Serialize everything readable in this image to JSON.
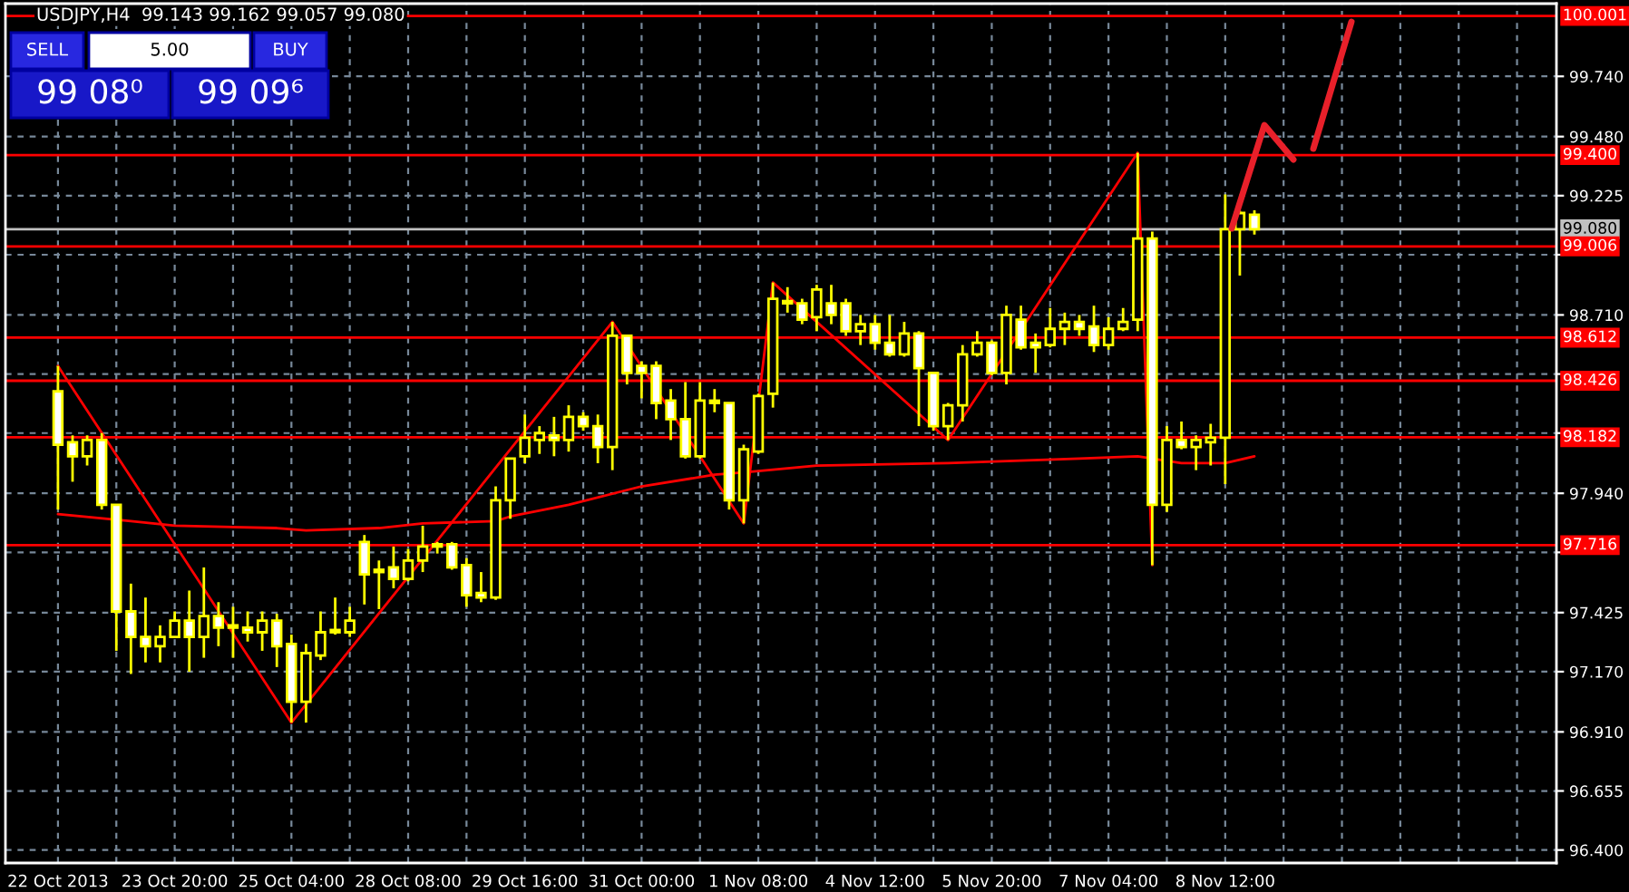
{
  "chart_data": {
    "type": "candlestick",
    "title": "USDJPY,H4  99.143 99.162 99.057 99.080",
    "annotations": [
      "SELL",
      "5.00",
      "BUY",
      "99 08⁰",
      "99 09⁶"
    ],
    "categories": [
      "22 Oct 2013",
      null,
      null,
      null,
      null,
      null,
      null,
      null,
      "23 Oct 20:00",
      null,
      null,
      null,
      null,
      null,
      null,
      null,
      "25 Oct 04:00",
      null,
      null,
      null,
      null,
      null,
      null,
      null,
      "28 Oct 08:00",
      null,
      null,
      null,
      null,
      null,
      null,
      null,
      "29 Oct 16:00",
      null,
      null,
      null,
      null,
      null,
      null,
      null,
      "31 Oct 00:00",
      null,
      null,
      null,
      null,
      null,
      null,
      null,
      "1 Nov 08:00",
      null,
      null,
      null,
      null,
      null,
      null,
      null,
      "4 Nov 12:00",
      null,
      null,
      null,
      null,
      null,
      null,
      null,
      "5 Nov 20:00",
      null,
      null,
      null,
      null,
      null,
      null,
      null,
      "7 Nov 04:00",
      null,
      null,
      null,
      null,
      null,
      null,
      null,
      "8 Nov 12:00",
      null,
      null,
      null,
      null,
      null,
      null,
      null,
      null,
      null,
      null,
      null,
      null,
      null,
      null,
      null,
      null,
      null,
      null,
      null,
      null,
      null,
      null
    ],
    "series": [
      {
        "type": "line",
        "color": "#ff0000",
        "values": [
          97.85,
          null,
          null,
          null,
          null,
          97.82,
          null,
          null,
          97.8,
          null,
          null,
          null,
          null,
          null,
          null,
          97.79,
          null,
          97.78,
          null,
          null,
          null,
          null,
          97.79,
          null,
          null,
          97.81,
          null,
          null,
          null,
          null,
          97.82,
          97.84,
          null,
          null,
          null,
          97.89,
          null,
          null,
          null,
          null,
          97.97,
          null,
          null,
          null,
          null,
          98.02,
          null,
          98.03,
          null,
          null,
          null,
          null,
          98.06,
          null,
          null,
          null,
          null,
          null,
          null,
          null,
          null,
          98.07,
          null,
          null,
          null,
          null,
          null,
          null,
          null,
          null,
          98.09,
          null,
          null,
          null,
          98.1,
          null,
          null,
          98.07,
          null,
          null,
          98.07,
          null,
          98.1,
          null,
          null,
          null,
          null,
          null,
          null,
          null,
          null,
          null,
          null,
          null,
          null,
          null,
          null,
          null,
          null,
          null,
          null,
          null,
          null
        ]
      },
      {
        "type": "line",
        "color": "#ff0000",
        "values": [
          98.49,
          null,
          null,
          null,
          null,
          null,
          null,
          null,
          null,
          null,
          null,
          null,
          null,
          null,
          null,
          null,
          96.95,
          null,
          null,
          null,
          null,
          null,
          null,
          null,
          null,
          null,
          null,
          null,
          null,
          null,
          null,
          null,
          null,
          null,
          null,
          null,
          null,
          null,
          98.68,
          null,
          null,
          null,
          null,
          null,
          null,
          null,
          null,
          97.81,
          null,
          98.85,
          null,
          null,
          null,
          null,
          null,
          null,
          null,
          null,
          null,
          null,
          null,
          98.17,
          null,
          null,
          null,
          null,
          null,
          null,
          null,
          null,
          null,
          null,
          null,
          null,
          99.41,
          97.63,
          null,
          null,
          null,
          null,
          null,
          null,
          null,
          null,
          null,
          null,
          null,
          null,
          null,
          null,
          null,
          null,
          null,
          null,
          null,
          null,
          null,
          null,
          null,
          null,
          null,
          null,
          null
        ]
      },
      {
        "type": "candlestick",
        "color": "#ffff00",
        "ohlc": [
          [
            98.38,
            98.49,
            97.87,
            98.15
          ],
          [
            98.16,
            98.19,
            97.99,
            98.1
          ],
          [
            98.1,
            98.19,
            98.06,
            98.17
          ],
          [
            98.17,
            98.2,
            97.87,
            97.89
          ],
          [
            97.89,
            97.89,
            97.26,
            97.43
          ],
          [
            97.43,
            97.55,
            97.16,
            97.32
          ],
          [
            97.32,
            97.49,
            97.21,
            97.28
          ],
          [
            97.28,
            97.37,
            97.21,
            97.32
          ],
          [
            97.32,
            97.43,
            97.32,
            97.39
          ],
          [
            97.39,
            97.52,
            97.17,
            97.32
          ],
          [
            97.32,
            97.62,
            97.23,
            97.41
          ],
          [
            97.41,
            97.47,
            97.28,
            97.36
          ],
          [
            97.37,
            97.45,
            97.23,
            97.36
          ],
          [
            97.36,
            97.43,
            97.3,
            97.34
          ],
          [
            97.34,
            97.43,
            97.26,
            97.39
          ],
          [
            97.39,
            97.42,
            97.19,
            97.28
          ],
          [
            97.29,
            97.33,
            96.95,
            97.04
          ],
          [
            97.04,
            97.29,
            96.95,
            97.25
          ],
          [
            97.24,
            97.43,
            97.22,
            97.34
          ],
          [
            97.35,
            97.49,
            97.33,
            97.34
          ],
          [
            97.34,
            97.45,
            97.32,
            97.39
          ],
          [
            97.73,
            97.76,
            97.46,
            97.59
          ],
          [
            97.61,
            97.65,
            97.44,
            97.6
          ],
          [
            97.62,
            97.71,
            97.53,
            97.57
          ],
          [
            97.57,
            97.7,
            97.56,
            97.65
          ],
          [
            97.65,
            97.8,
            97.6,
            97.71
          ],
          [
            97.71,
            97.73,
            97.68,
            97.72
          ],
          [
            97.72,
            97.73,
            97.61,
            97.62
          ],
          [
            97.63,
            97.66,
            97.45,
            97.5
          ],
          [
            97.51,
            97.6,
            97.47,
            97.49
          ],
          [
            97.49,
            97.97,
            97.48,
            97.91
          ],
          [
            97.91,
            98.09,
            97.83,
            98.09
          ],
          [
            98.1,
            98.28,
            98.07,
            98.18
          ],
          [
            98.17,
            98.23,
            98.11,
            98.2
          ],
          [
            98.19,
            98.27,
            98.1,
            98.17
          ],
          [
            98.17,
            98.32,
            98.12,
            98.27
          ],
          [
            98.27,
            98.29,
            98.21,
            98.23
          ],
          [
            98.23,
            98.28,
            98.07,
            98.14
          ],
          [
            98.14,
            98.68,
            98.04,
            98.62
          ],
          [
            98.62,
            98.62,
            98.41,
            98.46
          ],
          [
            98.49,
            98.51,
            98.35,
            98.46
          ],
          [
            98.49,
            98.51,
            98.26,
            98.33
          ],
          [
            98.34,
            98.39,
            98.17,
            98.26
          ],
          [
            98.26,
            98.42,
            98.09,
            98.1
          ],
          [
            98.1,
            98.42,
            98.09,
            98.34
          ],
          [
            98.34,
            98.39,
            98.29,
            98.33
          ],
          [
            98.33,
            98.33,
            97.87,
            97.91
          ],
          [
            97.91,
            98.15,
            97.81,
            98.13
          ],
          [
            98.12,
            98.37,
            98.11,
            98.36
          ],
          [
            98.37,
            98.85,
            98.31,
            98.78
          ],
          [
            98.77,
            98.83,
            98.72,
            98.76
          ],
          [
            98.76,
            98.78,
            98.67,
            98.69
          ],
          [
            98.7,
            98.84,
            98.64,
            98.82
          ],
          [
            98.76,
            98.84,
            98.67,
            98.71
          ],
          [
            98.76,
            98.78,
            98.62,
            98.64
          ],
          [
            98.64,
            98.71,
            98.58,
            98.67
          ],
          [
            98.67,
            98.71,
            98.56,
            98.59
          ],
          [
            98.59,
            98.71,
            98.53,
            98.54
          ],
          [
            98.54,
            98.68,
            98.53,
            98.63
          ],
          [
            98.63,
            98.64,
            98.23,
            98.48
          ],
          [
            98.46,
            98.46,
            98.21,
            98.23
          ],
          [
            98.23,
            98.33,
            98.17,
            98.32
          ],
          [
            98.32,
            98.58,
            98.25,
            98.54
          ],
          [
            98.54,
            98.64,
            98.53,
            98.59
          ],
          [
            98.59,
            98.6,
            98.45,
            98.46
          ],
          [
            98.46,
            98.75,
            98.41,
            98.71
          ],
          [
            98.69,
            98.75,
            98.56,
            98.57
          ],
          [
            98.59,
            98.63,
            98.46,
            98.57
          ],
          [
            98.58,
            98.74,
            98.57,
            98.65
          ],
          [
            98.65,
            98.72,
            98.58,
            98.68
          ],
          [
            98.68,
            98.71,
            98.62,
            98.65
          ],
          [
            98.66,
            98.75,
            98.55,
            98.58
          ],
          [
            98.58,
            98.7,
            98.56,
            98.65
          ],
          [
            98.65,
            98.74,
            98.64,
            98.68
          ],
          [
            98.69,
            99.41,
            98.64,
            99.04
          ],
          [
            99.04,
            99.07,
            97.63,
            97.89
          ],
          [
            97.89,
            98.23,
            97.86,
            98.17
          ],
          [
            98.17,
            98.25,
            98.13,
            98.14
          ],
          [
            98.14,
            98.19,
            98.04,
            98.17
          ],
          [
            98.16,
            98.24,
            98.06,
            98.18
          ],
          [
            98.18,
            99.23,
            97.98,
            99.08
          ],
          [
            99.08,
            99.16,
            98.88,
            99.15
          ],
          [
            99.143,
            99.162,
            99.057,
            99.08
          ],
          null,
          null,
          null,
          null,
          null,
          null,
          null,
          null,
          null,
          null,
          null,
          null,
          null,
          null,
          null,
          null,
          null,
          null,
          null,
          null
        ]
      }
    ],
    "ylim": [
      96.344,
      100.054
    ],
    "yticks": [
      {
        "value": 96.4,
        "label": "96.400"
      },
      {
        "value": 96.655,
        "label": "96.655"
      },
      {
        "value": 96.91,
        "label": "96.910"
      },
      {
        "value": 97.17,
        "label": "97.170"
      },
      {
        "value": 97.425,
        "label": "97.425"
      },
      {
        "value": 97.685,
        "label": null
      },
      {
        "value": 97.94,
        "label": "97.940"
      },
      {
        "value": 98.2,
        "label": null
      },
      {
        "value": 98.455,
        "label": null
      },
      {
        "value": 98.71,
        "label": "98.710"
      },
      {
        "value": 98.97,
        "label": null
      },
      {
        "value": 99.225,
        "label": "99.225"
      },
      {
        "value": 99.48,
        "label": "99.480"
      },
      {
        "value": 99.74,
        "label": "99.740"
      }
    ],
    "ref_lines": [
      {
        "axis": "y",
        "value": 100.001,
        "label": "100.001",
        "color": "#ff0000"
      },
      {
        "axis": "y",
        "value": 99.4,
        "label": "99.400",
        "color": "#ff0000"
      },
      {
        "axis": "y",
        "value": 99.08,
        "label": "99.080",
        "color": "#c0c0c0"
      },
      {
        "axis": "y",
        "value": 99.006,
        "label": "99.006",
        "color": "#ff0000"
      },
      {
        "axis": "y",
        "value": 98.612,
        "label": "98.612",
        "color": "#ff0000"
      },
      {
        "axis": "y",
        "value": 98.426,
        "label": "98.426",
        "color": "#ff0000"
      },
      {
        "axis": "y",
        "value": 98.182,
        "label": "98.182",
        "color": "#ff0000"
      },
      {
        "axis": "y",
        "value": 97.716,
        "label": "97.716",
        "color": "#ff0000"
      }
    ],
    "grid": true
  }
}
